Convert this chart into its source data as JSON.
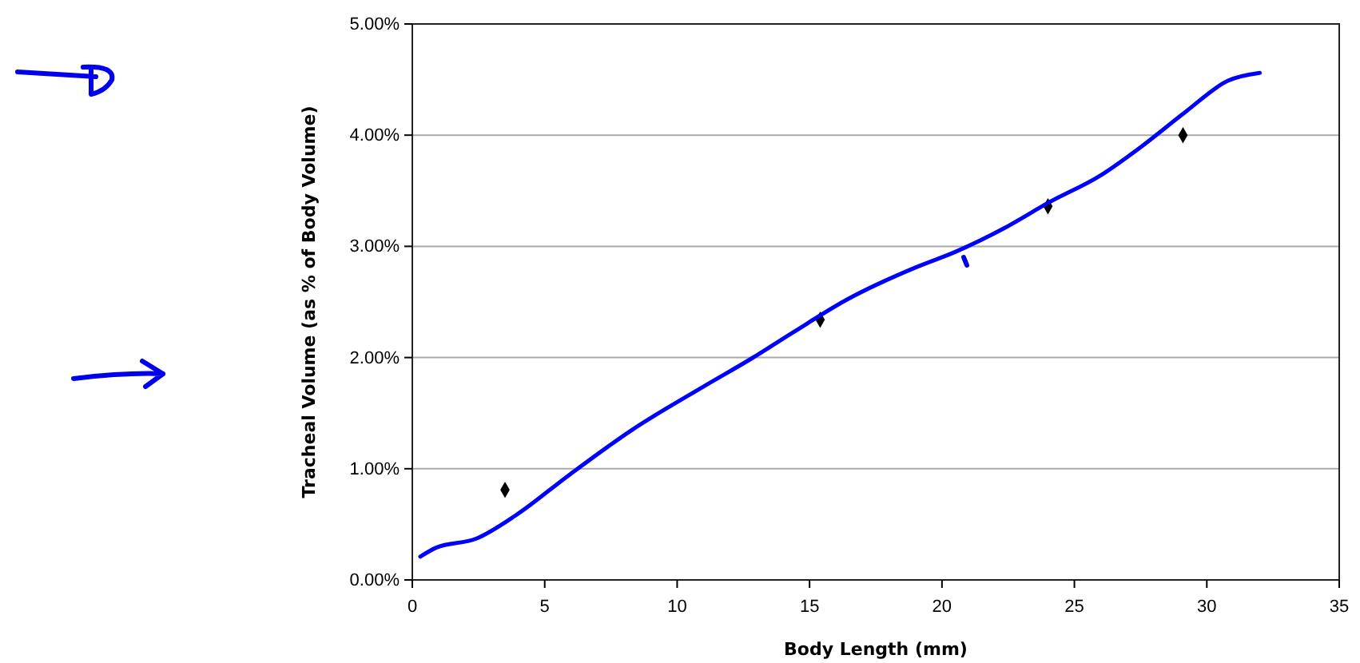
{
  "chart_data": {
    "type": "scatter",
    "xlabel": "Body Length (mm)",
    "ylabel": "Tracheal Volume (as % of Body Volume)",
    "xlim": [
      0,
      35
    ],
    "xticks": [
      0,
      5,
      10,
      15,
      20,
      25,
      30,
      35
    ],
    "ylim": [
      0,
      5
    ],
    "yticks": [
      {
        "value": 0,
        "label": "0.00%"
      },
      {
        "value": 1,
        "label": "1.00%"
      },
      {
        "value": 2,
        "label": "2.00%"
      },
      {
        "value": 3,
        "label": "3.00%"
      },
      {
        "value": 4,
        "label": "4.00%"
      },
      {
        "value": 5,
        "label": "5.00%"
      }
    ],
    "grid": "y",
    "marker": "diamond",
    "series": [
      {
        "color": "#000000",
        "x": [
          3.5,
          15.4,
          24.0,
          29.1
        ],
        "values": [
          0.81,
          2.34,
          3.36,
          4.0
        ]
      },
      {
        "type": "line",
        "color": "#0000ff",
        "marker": "none",
        "x": [
          0.3,
          0.9,
          2.4,
          3.9,
          5.9,
          8.3,
          11,
          12.8,
          14.4,
          16.4,
          19,
          20.5,
          22.4,
          24,
          26,
          27.6,
          29.2,
          30.8,
          32
        ],
        "values": [
          0.21,
          0.29,
          0.37,
          0.58,
          0.94,
          1.35,
          1.74,
          1.99,
          2.23,
          2.52,
          2.81,
          2.95,
          3.17,
          3.39,
          3.64,
          3.91,
          4.21,
          4.49,
          4.56
        ]
      }
    ]
  }
}
